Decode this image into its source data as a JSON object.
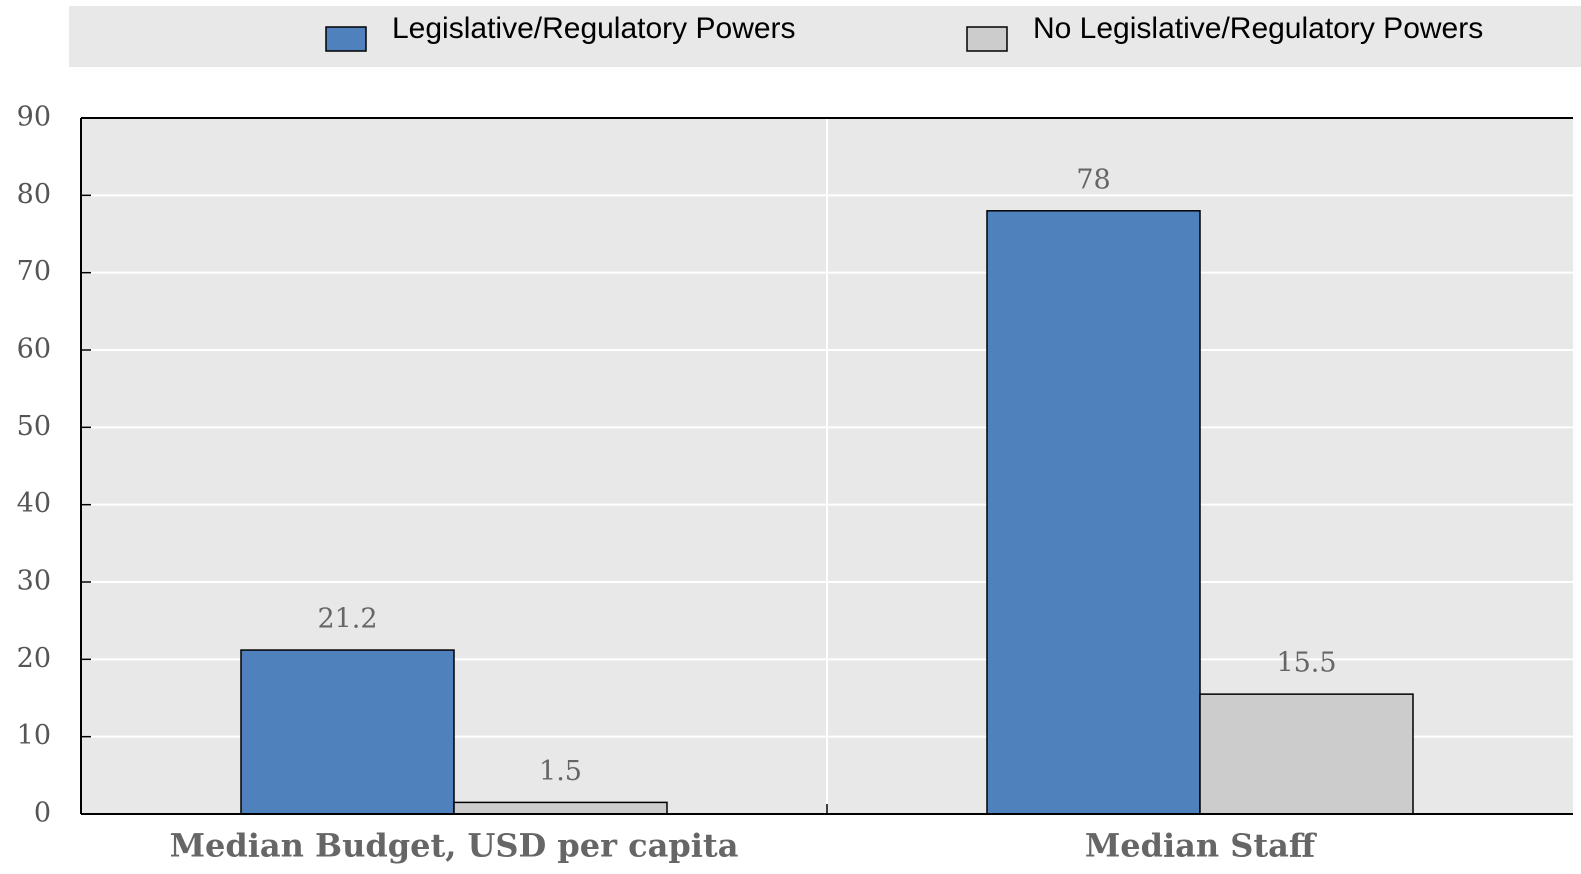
{
  "chart_data": {
    "type": "bar",
    "categories": [
      "Median Budget, USD per capita",
      "Median Staff"
    ],
    "series": [
      {
        "name": "Legislative/Regulatory Powers",
        "color": "#4f81bd",
        "values": [
          21.2,
          78
        ]
      },
      {
        "name": "No Legislative/Regulatory Powers",
        "color": "#cccccc",
        "values": [
          1.5,
          15.5
        ]
      }
    ],
    "ylim": [
      0,
      90
    ],
    "yticks": [
      0,
      10,
      20,
      30,
      40,
      50,
      60,
      70,
      80,
      90
    ],
    "grid": true,
    "legend": "top"
  }
}
